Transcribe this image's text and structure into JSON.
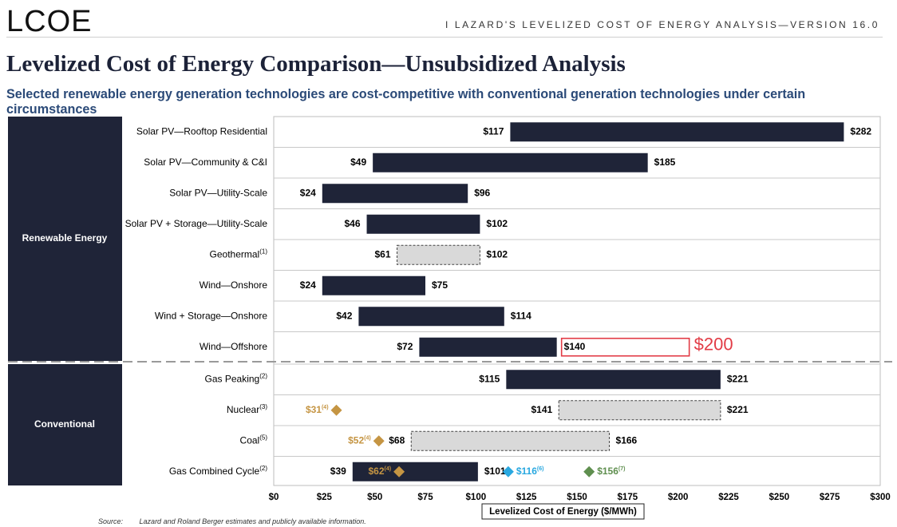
{
  "header": {
    "logo": "LCOE",
    "right_text": "I   LAZARD'S LEVELIZED COST OF ENERGY ANALYSIS—VERSION 16.0"
  },
  "title": "Levelized Cost of Energy Comparison—Unsubsidized Analysis",
  "subtitle": "Selected renewable energy generation technologies are cost-competitive with conventional generation technologies under certain circumstances",
  "source": {
    "label": "Source:",
    "text": "Lazard and Roland Berger estimates and publicly available information."
  },
  "colors": {
    "navy": "#1f2438",
    "gray_fill": "#d9d9d9",
    "gold": "#c59543",
    "blue": "#29a8e0",
    "green": "#5f8f4f",
    "red": "#e23c46"
  },
  "chart_data": {
    "type": "bar",
    "orientation": "horizontal-range",
    "xlabel": "Levelized Cost of Energy ($/MWh)",
    "xlim": [
      0,
      300
    ],
    "xticks": [
      "$0",
      "$25",
      "$50",
      "$75",
      "$100",
      "$125",
      "$150",
      "$175",
      "$200",
      "$225",
      "$250",
      "$275",
      "$300"
    ],
    "groups": [
      {
        "name": "Renewable Energy",
        "rows": [
          0,
          1,
          2,
          3,
          4,
          5,
          6,
          7
        ]
      },
      {
        "name": "Conventional",
        "rows": [
          8,
          9,
          10,
          11
        ]
      }
    ],
    "rows": [
      {
        "label": "Solar PV—Rooftop Residential",
        "sup": "",
        "low": 117,
        "high": 282,
        "low_label": "$117",
        "high_label": "$282",
        "style": "solid",
        "markers": []
      },
      {
        "label": "Solar PV—Community & C&I",
        "sup": "",
        "low": 49,
        "high": 185,
        "low_label": "$49",
        "high_label": "$185",
        "style": "solid",
        "markers": []
      },
      {
        "label": "Solar PV—Utility-Scale",
        "sup": "",
        "low": 24,
        "high": 96,
        "low_label": "$24",
        "high_label": "$96",
        "style": "solid",
        "markers": []
      },
      {
        "label": "Solar PV + Storage—Utility-Scale",
        "sup": "",
        "low": 46,
        "high": 102,
        "low_label": "$46",
        "high_label": "$102",
        "style": "solid",
        "markers": []
      },
      {
        "label": "Geothermal",
        "sup": "(1)",
        "low": 61,
        "high": 102,
        "low_label": "$61",
        "high_label": "$102",
        "style": "dashed",
        "markers": []
      },
      {
        "label": "Wind—Onshore",
        "sup": "",
        "low": 24,
        "high": 75,
        "low_label": "$24",
        "high_label": "$75",
        "style": "solid",
        "markers": []
      },
      {
        "label": "Wind + Storage—Onshore",
        "sup": "",
        "low": 42,
        "high": 114,
        "low_label": "$42",
        "high_label": "$114",
        "style": "solid",
        "markers": []
      },
      {
        "label": "Wind—Offshore",
        "sup": "",
        "low": 72,
        "high": 140,
        "low_label": "$72",
        "high_label": "$140",
        "style": "solid",
        "markers": [],
        "annotation": {
          "value": 200,
          "label": "$200"
        }
      },
      {
        "label": "Gas Peaking",
        "sup": "(2)",
        "low": 115,
        "high": 221,
        "low_label": "$115",
        "high_label": "$221",
        "style": "solid",
        "markers": []
      },
      {
        "label": "Nuclear",
        "sup": "(3)",
        "low": 141,
        "high": 221,
        "low_label": "$141",
        "high_label": "$221",
        "style": "dashed",
        "markers": [
          {
            "value": 31,
            "label": "$31",
            "sup": "(4)",
            "color": "gold",
            "label_side": "left"
          }
        ]
      },
      {
        "label": "Coal",
        "sup": "(5)",
        "low": 68,
        "high": 166,
        "low_label": "$68",
        "high_label": "$166",
        "style": "dashed",
        "markers": [
          {
            "value": 52,
            "label": "$52",
            "sup": "(4)",
            "color": "gold",
            "label_side": "left"
          }
        ]
      },
      {
        "label": "Gas Combined Cycle",
        "sup": "(2)",
        "low": 39,
        "high": 101,
        "low_label": "$39",
        "high_label": "$101",
        "style": "solid",
        "markers": [
          {
            "value": 62,
            "label": "$62",
            "sup": "(4)",
            "color": "gold",
            "label_side": "left"
          },
          {
            "value": 116,
            "label": "$116",
            "sup": "(6)",
            "color": "blue",
            "label_side": "right"
          },
          {
            "value": 156,
            "label": "$156",
            "sup": "(7)",
            "color": "green",
            "label_side": "right"
          }
        ]
      }
    ]
  }
}
